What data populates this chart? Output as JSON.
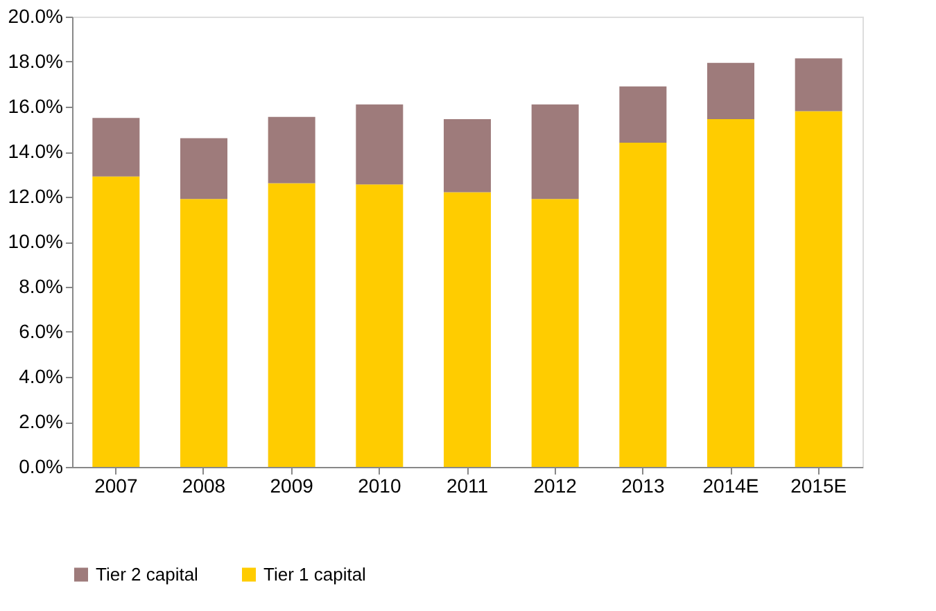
{
  "chart_data": {
    "type": "bar",
    "stacked": true,
    "categories": [
      "2007",
      "2008",
      "2009",
      "2010",
      "2011",
      "2012",
      "2013",
      "2014E",
      "2015E"
    ],
    "series": [
      {
        "name": "Tier 1 capital",
        "color": "#ffcc00",
        "values": [
          12.9,
          11.9,
          12.6,
          12.55,
          12.2,
          11.9,
          14.4,
          15.45,
          15.8
        ]
      },
      {
        "name": "Tier 2 capital",
        "color": "#9e7b7b",
        "values": [
          2.6,
          2.7,
          2.95,
          3.55,
          3.25,
          4.2,
          2.5,
          2.5,
          2.35
        ]
      }
    ],
    "ylim": [
      0,
      20
    ],
    "yticks": [
      {
        "value": 0,
        "label": "0.0%"
      },
      {
        "value": 2,
        "label": "2.0%"
      },
      {
        "value": 4,
        "label": "4.0%"
      },
      {
        "value": 6,
        "label": "6.0%"
      },
      {
        "value": 8,
        "label": "8.0%"
      },
      {
        "value": 10,
        "label": "10.0%"
      },
      {
        "value": 12,
        "label": "12.0%"
      },
      {
        "value": 14,
        "label": "14.0%"
      },
      {
        "value": 16,
        "label": "16.0%"
      },
      {
        "value": 18,
        "label": "18.0%"
      },
      {
        "value": 20,
        "label": "20.0%"
      }
    ],
    "grid": false,
    "legend": "bottom"
  }
}
